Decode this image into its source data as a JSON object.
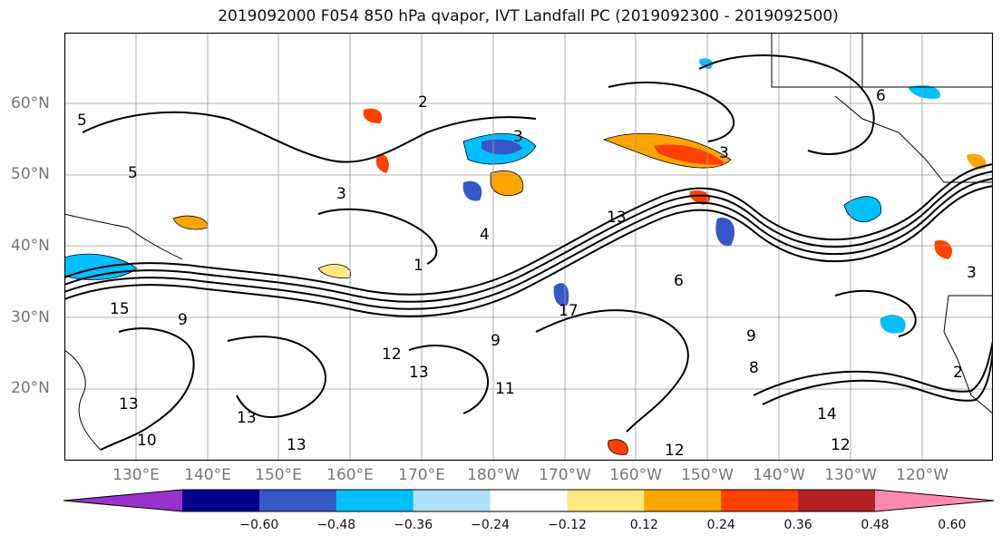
{
  "title": "2019092000 F054 850 hPa qvapor, IVT Landfall PC (2019092300 - 2019092500)",
  "lat_labels": [
    "60°N",
    "50°N",
    "40°N",
    "30°N",
    "20°N"
  ],
  "lon_labels": [
    "130°E",
    "140°E",
    "150°E",
    "160°E",
    "170°E",
    "180°W",
    "170°W",
    "160°W",
    "150°W",
    "140°W",
    "130°W",
    "120°W"
  ],
  "colorbar": {
    "colors": [
      "#9932cc",
      "#00008b",
      "#3657c8",
      "#00bfff",
      "#b0e0fa",
      "#ffffff",
      "#ffe980",
      "#ffa500",
      "#ff4000",
      "#b22222",
      "#ff88b0"
    ],
    "tick_labels": [
      "−0.60",
      "−0.48",
      "−0.36",
      "−0.24",
      "−0.12",
      "0.12",
      "0.24",
      "0.36",
      "0.48",
      "0.60"
    ]
  },
  "contour_labels": [
    "2",
    "5",
    "3",
    "5",
    "3",
    "4",
    "1",
    "13",
    "9",
    "12",
    "13",
    "15",
    "13",
    "10",
    "6",
    "9",
    "8",
    "14",
    "12",
    "13",
    "6",
    "3",
    "17",
    "2",
    "3",
    "12",
    "11",
    "9",
    "13"
  ]
}
